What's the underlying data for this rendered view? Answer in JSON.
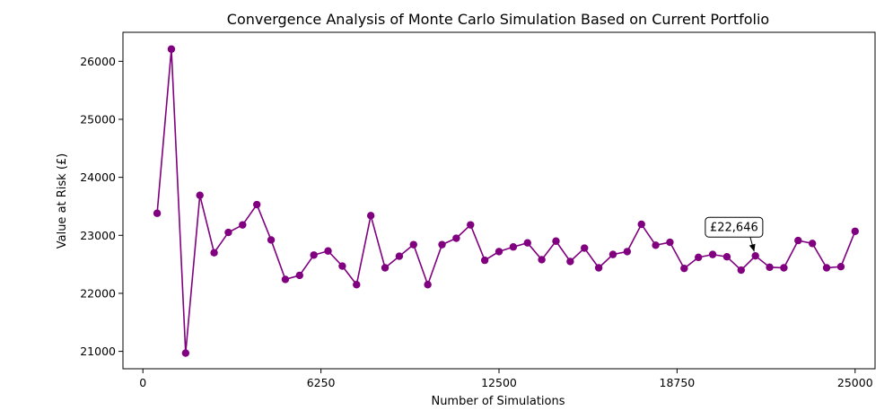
{
  "chart_data": {
    "type": "line",
    "title": "Convergence Analysis of Monte Carlo Simulation Based on Current Portfolio",
    "xlabel": "Number of Simulations",
    "ylabel": "Value at Risk (£)",
    "xlim": [
      -700,
      25700
    ],
    "ylim": [
      20700,
      26500
    ],
    "xticks": [
      0,
      6250,
      12500,
      18750,
      25000
    ],
    "xtick_labels": [
      "0",
      "6250",
      "12500",
      "18750",
      "25000"
    ],
    "yticks": [
      21000,
      22000,
      23000,
      24000,
      25000,
      26000
    ],
    "ytick_labels": [
      "21000",
      "22000",
      "23000",
      "24000",
      "25000",
      "26000"
    ],
    "grid": false,
    "legend": "none",
    "series": [
      {
        "color": "#800080",
        "marker": "circle",
        "x": [
          500,
          1000,
          1500,
          2000,
          2500,
          3000,
          3500,
          4000,
          4500,
          5000,
          5500,
          6000,
          6500,
          7000,
          7500,
          8000,
          8500,
          9000,
          9500,
          10000,
          10500,
          11000,
          11500,
          12000,
          12500,
          13000,
          13500,
          14000,
          14500,
          15000,
          15500,
          16000,
          16500,
          17000,
          17500,
          18000,
          18500,
          19000,
          19500,
          20000,
          20500,
          21000,
          21500,
          22000,
          22500,
          23000,
          23500,
          24000,
          24500,
          25000
        ],
        "y": [
          23380,
          26210,
          20970,
          23690,
          22700,
          23050,
          23180,
          23530,
          22920,
          22240,
          22310,
          22660,
          22730,
          22470,
          22150,
          23340,
          22440,
          22640,
          22840,
          22150,
          22840,
          22950,
          23180,
          22570,
          22720,
          22800,
          22870,
          22580,
          22900,
          22550,
          22780,
          22440,
          22670,
          22720,
          23190,
          22830,
          22880,
          22430,
          22620,
          22670,
          22630,
          22400,
          22646,
          22450,
          22440,
          22910,
          22860,
          22440,
          22460,
          23070
        ]
      }
    ],
    "annotation": {
      "text": "£22,646",
      "x": 21500,
      "y": 22646,
      "text_x": 20750,
      "text_y": 23140
    }
  }
}
